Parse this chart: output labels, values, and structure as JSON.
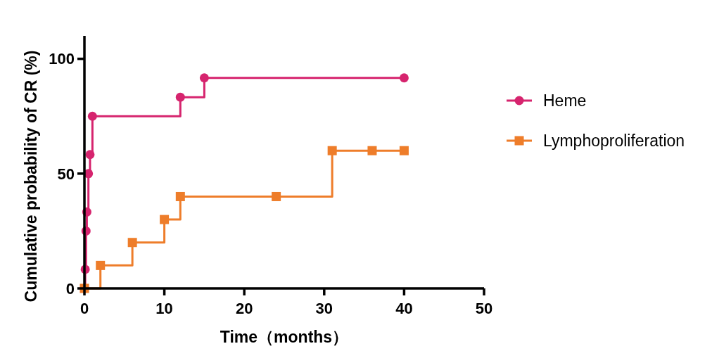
{
  "chart_data": {
    "type": "step",
    "xlabel": "Time（months）",
    "ylabel": "Cumulative probability of CR (%)",
    "xlim": [
      0,
      50
    ],
    "xticks": [
      0,
      10,
      20,
      30,
      40,
      50
    ],
    "ylim": [
      0,
      110
    ],
    "yticks": [
      0,
      50,
      100
    ],
    "grid": false,
    "legend": "right",
    "line_style": "solid",
    "series": [
      {
        "name": "Heme",
        "color": "#d6246e",
        "marker": "circle",
        "x": [
          0,
          0.1,
          0.2,
          0.3,
          0.5,
          0.7,
          1,
          12,
          15,
          40
        ],
        "values": [
          0,
          8.3,
          25,
          33.3,
          50,
          58.3,
          75,
          83.3,
          91.7,
          91.7
        ]
      },
      {
        "name": "Lymphoproliferation",
        "color": "#ee7d2a",
        "marker": "square",
        "x": [
          0,
          2,
          6,
          10,
          12,
          24,
          31,
          36,
          40
        ],
        "values": [
          0,
          10,
          20,
          30,
          40,
          40,
          60,
          60,
          60
        ]
      }
    ]
  }
}
